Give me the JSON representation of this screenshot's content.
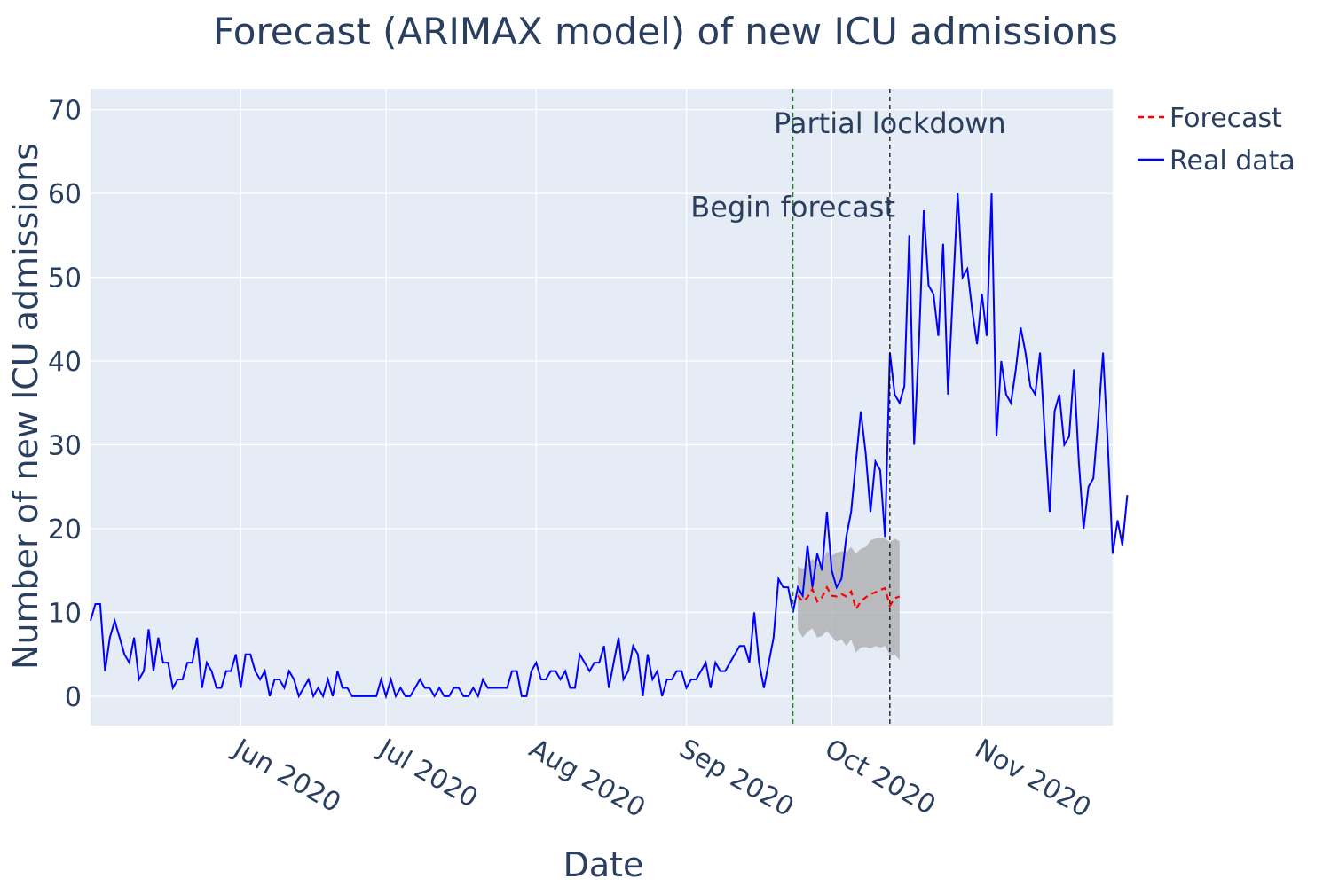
{
  "chart_data": {
    "type": "line",
    "title": "Forecast (ARIMAX model) of new ICU admissions",
    "xlabel": "Date",
    "ylabel": "Number of new ICU admissions",
    "xlim": [
      "2020-05-01",
      "2020-11-28"
    ],
    "ylim": [
      -3.5,
      72.5
    ],
    "y_ticks": [
      0,
      10,
      20,
      30,
      40,
      50,
      60,
      70
    ],
    "x_ticks": [
      {
        "date": "2020-06-01",
        "label": "Jun 2020"
      },
      {
        "date": "2020-07-01",
        "label": "Jul 2020"
      },
      {
        "date": "2020-08-01",
        "label": "Aug 2020"
      },
      {
        "date": "2020-09-01",
        "label": "Sep 2020"
      },
      {
        "date": "2020-10-01",
        "label": "Oct 2020"
      },
      {
        "date": "2020-11-01",
        "label": "Nov 2020"
      }
    ],
    "legend_position": "top-right",
    "background_color": "#e5ecf6",
    "grid": true,
    "series": [
      {
        "name": "Real data",
        "color": "#0000ff",
        "style": "solid",
        "start": "2020-05-01",
        "values": [
          9,
          11,
          11,
          3,
          7,
          9,
          7,
          5,
          4,
          7,
          2,
          3,
          8,
          3,
          7,
          4,
          4,
          1,
          2,
          2,
          4,
          4,
          7,
          1,
          4,
          3,
          1,
          1,
          3,
          3,
          5,
          1,
          5,
          5,
          3,
          2,
          3,
          0,
          2,
          2,
          1,
          3,
          2,
          0,
          1,
          2,
          0,
          1,
          0,
          2,
          0,
          3,
          1,
          1,
          0,
          0,
          0,
          0,
          0,
          0,
          2,
          0,
          2,
          0,
          1,
          0,
          0,
          1,
          2,
          1,
          1,
          0,
          1,
          0,
          0,
          1,
          1,
          0,
          0,
          1,
          0,
          2,
          1,
          1,
          1,
          1,
          1,
          3,
          3,
          0,
          0,
          3,
          4,
          2,
          2,
          3,
          3,
          2,
          3,
          1,
          1,
          5,
          4,
          3,
          4,
          4,
          6,
          1,
          4,
          7,
          2,
          3,
          6,
          5,
          0,
          5,
          2,
          3,
          0,
          2,
          2,
          3,
          3,
          1,
          2,
          2,
          3,
          4,
          1,
          4,
          3,
          3,
          4,
          5,
          6,
          6,
          4,
          10,
          4,
          1,
          4,
          7,
          14,
          13,
          13,
          10,
          13,
          12,
          18,
          13,
          17,
          15,
          22,
          15,
          13,
          14,
          19,
          22,
          28,
          34,
          29,
          22,
          28,
          27,
          19,
          41,
          36,
          35,
          37,
          55,
          30,
          42,
          58,
          49,
          48,
          43,
          54,
          36,
          48,
          60,
          50,
          51,
          46,
          42,
          48,
          43,
          60,
          31,
          40,
          36,
          35,
          39,
          44,
          41,
          37,
          36,
          41,
          31,
          22,
          34,
          36,
          30,
          31,
          39,
          28,
          20,
          25,
          26,
          33,
          41,
          30,
          17,
          21,
          18,
          24
        ]
      },
      {
        "name": "Forecast",
        "color": "#ff0000",
        "style": "dashed",
        "start": "2020-09-24",
        "values": [
          12,
          11.3,
          11.8,
          12.8,
          11.3,
          11.8,
          13,
          12,
          11.9,
          12.2,
          11.9,
          12.5,
          10.4,
          11.3,
          11.8,
          12.2,
          12.4,
          12.7,
          12.9,
          10.8,
          11.7,
          11.9
        ]
      }
    ],
    "confidence_band": {
      "start": "2020-09-24",
      "lower": [
        8.0,
        7.0,
        7.7,
        8.1,
        7.0,
        7.2,
        7.8,
        7.1,
        6.5,
        6.8,
        6.0,
        6.8,
        5.2,
        5.8,
        5.9,
        5.7,
        6.0,
        5.8,
        6.0,
        4.9,
        5.0,
        4.3
      ],
      "upper": [
        15.5,
        15.2,
        15.7,
        16.4,
        15.8,
        16.0,
        17.3,
        16.8,
        17.1,
        17.3,
        17.2,
        17.8,
        17.0,
        17.6,
        17.8,
        18.6,
        18.8,
        18.9,
        18.8,
        18.4,
        18.8,
        18.5
      ],
      "color": "#aaaaaa"
    },
    "annotations": [
      {
        "label": "Begin forecast",
        "date": "2020-09-23",
        "line_color": "#008000",
        "y": 58.5
      },
      {
        "label": "Partial lockdown",
        "date": "2020-10-13",
        "line_color": "#000000",
        "y": 68.5
      }
    ]
  }
}
